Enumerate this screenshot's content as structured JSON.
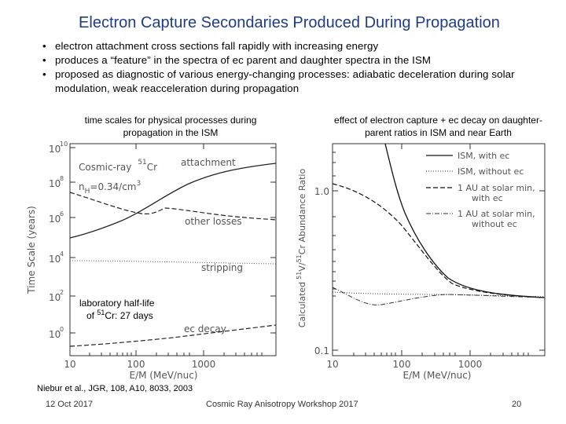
{
  "slide": {
    "title": "Electron Capture Secondaries Produced During Propagation",
    "bullets": [
      "electron attachment cross sections fall rapidly with increasing energy",
      "produces a “feature” in the spectra of ec parent and daughter spectra in the ISM",
      "proposed as diagnostic of various energy-changing processes: adiabatic deceleration during solar modulation, weak reacceleration during propagation"
    ],
    "left_caption": "time scales for physical processes during propagation in the ISM",
    "right_caption": "effect of electron capture + ec decay on daughter-parent ratios in ISM and near Earth",
    "halflife_label_1": "laboratory half-life",
    "halflife_label_2": "of",
    "halflife_sup": "51",
    "halflife_label_3": "Cr:  27 days",
    "reference": "Niebur et al., JGR, 108, A10, 8033, 2003",
    "footer_date": "12 Oct 2017",
    "footer_center": "Cosmic Ray Anisotropy Workshop 2017",
    "footer_page": "20"
  },
  "left_plot": {
    "ylabel": "Time Scale (years)",
    "xlabel": "E/M  (MeV/nuc)",
    "xticks": [
      "10",
      "100",
      "1000"
    ],
    "yticks": [
      "10",
      "10",
      "10",
      "10",
      "10",
      "10"
    ],
    "ytick_exps": [
      "10",
      "8",
      "6",
      "4",
      "2",
      "0"
    ],
    "legend_line1": "Cosmic-ray",
    "legend_sup": "51",
    "legend_cr": "Cr",
    "legend_line2": "n",
    "legend_sub": "H",
    "legend_line2b": "=0.34/cm",
    "legend_sup3": "3",
    "labels": [
      "attachment",
      "other losses",
      "stripping",
      "ec decay"
    ]
  },
  "right_plot": {
    "ylabel_a": "Calculated",
    "ylabel_sup1": "51",
    "ylabel_b": "V/",
    "ylabel_sup2": "51",
    "ylabel_c": "Cr Abundance Ratio",
    "xlabel": "E/M  (MeV/nuc)",
    "xticks": [
      "10",
      "100",
      "1000"
    ],
    "yticks": [
      "1.0",
      "0.1"
    ],
    "legend": [
      {
        "label": "ISM, with ec"
      },
      {
        "label": "ISM, without ec"
      },
      {
        "label": "1 AU at solar min,",
        "label2": "with ec"
      },
      {
        "label": "1 AU at solar min,",
        "label2": "without ec"
      }
    ]
  }
}
